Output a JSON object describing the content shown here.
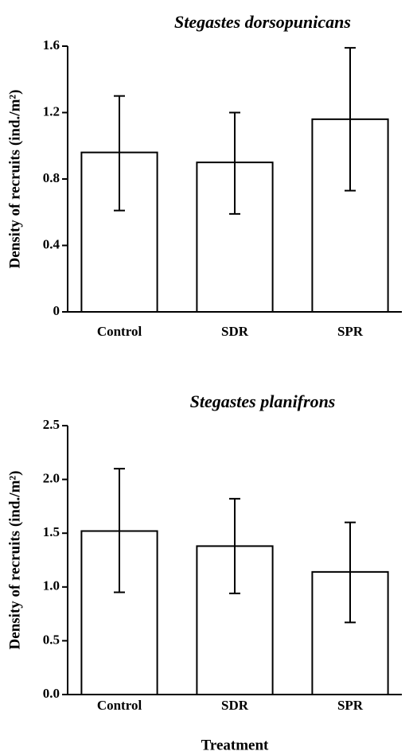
{
  "chart_data": [
    {
      "type": "bar",
      "title": "Stegastes dorsopunicans",
      "ylabel": "Density of recruits (ind./m²)",
      "categories": [
        "Control",
        "SDR",
        "SPR"
      ],
      "values": [
        0.96,
        0.9,
        1.16
      ],
      "error_low": [
        0.61,
        0.59,
        0.73
      ],
      "error_high": [
        1.3,
        1.2,
        1.59
      ],
      "ylim": [
        0,
        1.6
      ],
      "yticks": [
        0,
        0.4,
        0.8,
        1.2,
        1.6
      ],
      "color": "#ffffff"
    },
    {
      "type": "bar",
      "title": "Stegastes planifrons",
      "ylabel": "Density of recruits (ind./m²)",
      "xlabel": "Treatment",
      "categories": [
        "Control",
        "SDR",
        "SPR"
      ],
      "values": [
        1.52,
        1.38,
        1.14
      ],
      "error_low": [
        0.95,
        0.94,
        0.67
      ],
      "error_high": [
        2.1,
        1.82,
        1.6
      ],
      "ylim": [
        0,
        2.5
      ],
      "yticks": [
        {
          "value": 0,
          "label": "0.0"
        },
        0.5,
        {
          "value": 1,
          "label": "1.0"
        },
        1.5,
        {
          "value": 2,
          "label": "2.0"
        },
        2.5
      ],
      "color": "#ffffff"
    }
  ]
}
